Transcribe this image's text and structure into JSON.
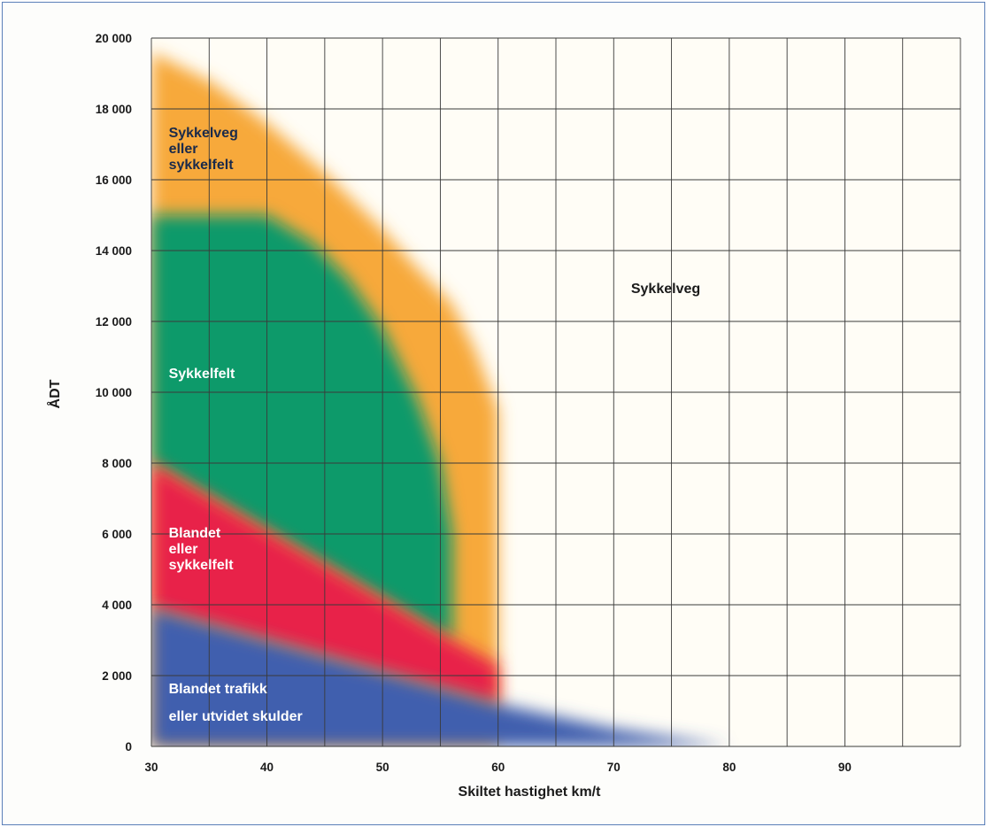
{
  "chart_data": {
    "type": "area",
    "title": "",
    "xlabel": "Skiltet hastighet km/t",
    "ylabel": "ÅDT",
    "xlim": [
      30,
      100
    ],
    "ylim": [
      0,
      20000
    ],
    "x_ticks": [
      "30",
      "40",
      "50",
      "60",
      "70",
      "80",
      "90"
    ],
    "y_ticks": [
      "0",
      "2 000",
      "4 000",
      "6 000",
      "8 000",
      "10 000",
      "12 000",
      "14 000",
      "16 000",
      "18 000",
      "20 000"
    ],
    "grid": true,
    "regions": [
      {
        "name": "Sykkelveg eller sykkelfelt",
        "label_lines": [
          "Sykkelveg",
          "eller",
          "sykkelfelt"
        ],
        "color": "#f7a93a",
        "label_color": "#1a2a4a",
        "label_anchor": [
          31.5,
          17200
        ],
        "boundary": [
          [
            30,
            0
          ],
          [
            30,
            19600
          ],
          [
            35,
            18800
          ],
          [
            40,
            17600
          ],
          [
            45,
            16200
          ],
          [
            50,
            14600
          ],
          [
            53,
            13500
          ],
          [
            56,
            12500
          ],
          [
            58,
            11200
          ],
          [
            60,
            9500
          ],
          [
            60,
            0
          ]
        ]
      },
      {
        "name": "Sykkelfelt",
        "label_lines": [
          "Sykkelfelt"
        ],
        "color": "#0e9a6a",
        "label_color": "#ffffff",
        "label_anchor": [
          31.5,
          10400
        ],
        "boundary": [
          [
            30,
            8000
          ],
          [
            30,
            15000
          ],
          [
            40,
            15000
          ],
          [
            44,
            14200
          ],
          [
            47,
            13200
          ],
          [
            50,
            11800
          ],
          [
            53,
            9800
          ],
          [
            55,
            8000
          ],
          [
            56,
            6000
          ],
          [
            56,
            3000
          ],
          [
            30,
            8000
          ]
        ]
      },
      {
        "name": "Blandet eller sykkelfelt",
        "label_lines": [
          "Blandet",
          "eller",
          "sykkelfelt"
        ],
        "color": "#e8204a",
        "label_color": "#ffffff",
        "label_anchor": [
          31.5,
          5900
        ],
        "boundary": [
          [
            30,
            3900
          ],
          [
            30,
            8000
          ],
          [
            56,
            3000
          ],
          [
            60,
            2300
          ],
          [
            60,
            1200
          ],
          [
            30,
            3900
          ]
        ]
      },
      {
        "name": "Blandet trafikk eller utvidet skulder",
        "label_lines": [
          "Blandet trafikk",
          "eller utvidet skulder"
        ],
        "color": "#3f5fae",
        "label_color": "#ffffff",
        "label_anchor": [
          31.5,
          1500
        ],
        "boundary": [
          [
            30,
            0
          ],
          [
            30,
            3900
          ],
          [
            60,
            1200
          ],
          [
            70,
            500
          ],
          [
            80,
            0
          ]
        ]
      },
      {
        "name": "Sykkelveg",
        "label_lines": [
          "Sykkelveg"
        ],
        "color": "",
        "label_color": "#1a1a1a",
        "label_anchor": [
          71.5,
          12800
        ],
        "boundary": []
      }
    ]
  }
}
